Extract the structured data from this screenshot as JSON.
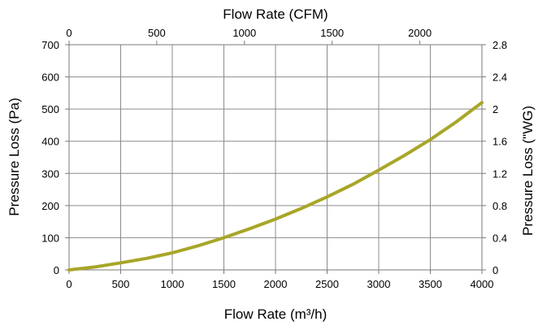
{
  "chart_data": {
    "type": "line",
    "xlabel_bottom": "Flow Rate (m³/h)",
    "xlabel_top": "Flow Rate (CFM)",
    "ylabel_left": "Pressure Loss (Pa)",
    "ylabel_right": "Pressure Loss (\"WG)",
    "xlim": [
      0,
      4000
    ],
    "ylim": [
      0,
      700
    ],
    "x_top_lim": [
      0,
      2354
    ],
    "y_right_lim": [
      0,
      2.8
    ],
    "x_ticks_bottom": [
      "0",
      "500",
      "1000",
      "1500",
      "2000",
      "2500",
      "3000",
      "3500",
      "4000"
    ],
    "x_ticks_top": [
      "0",
      "500",
      "1000",
      "1500",
      "2000"
    ],
    "y_ticks_left": [
      "0",
      "100",
      "200",
      "300",
      "400",
      "500",
      "600",
      "700"
    ],
    "y_ticks_right": [
      "0",
      "0.4",
      "0.8",
      "1.2",
      "1.6",
      "2",
      "2.4",
      "2.8"
    ],
    "grid": true,
    "line_color": "#a8a628",
    "series": [
      {
        "x": [
          0,
          250,
          500,
          750,
          1000,
          1250,
          1500,
          1750,
          2000,
          2250,
          2500,
          2750,
          3000,
          3250,
          3500,
          3750,
          4000
        ],
        "values": [
          0,
          9,
          22,
          36,
          53,
          75,
          100,
          128,
          158,
          191,
          227,
          266,
          310,
          356,
          405,
          460,
          520
        ]
      }
    ]
  }
}
